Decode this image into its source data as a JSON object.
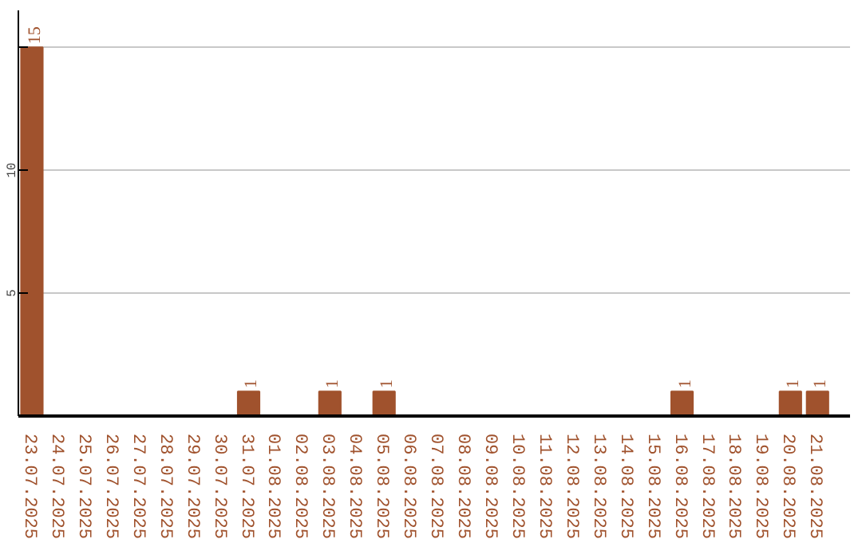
{
  "chart_data": {
    "type": "bar",
    "categories": [
      "23.07.2025",
      "24.07.2025",
      "25.07.2025",
      "26.07.2025",
      "27.07.2025",
      "28.07.2025",
      "29.07.2025",
      "30.07.2025",
      "31.07.2025",
      "01.08.2025",
      "02.08.2025",
      "03.08.2025",
      "04.08.2025",
      "05.08.2025",
      "06.08.2025",
      "07.08.2025",
      "08.08.2025",
      "09.08.2025",
      "10.08.2025",
      "11.08.2025",
      "12.08.2025",
      "13.08.2025",
      "14.08.2025",
      "15.08.2025",
      "16.08.2025",
      "17.08.2025",
      "18.08.2025",
      "19.08.2025",
      "20.08.2025",
      "21.08.2025"
    ],
    "values": [
      15,
      0,
      0,
      0,
      0,
      0,
      0,
      0,
      1,
      0,
      0,
      1,
      0,
      1,
      0,
      0,
      0,
      0,
      0,
      0,
      0,
      0,
      0,
      0,
      1,
      0,
      0,
      0,
      1,
      1
    ],
    "value_labels": [
      "15",
      null,
      null,
      null,
      null,
      null,
      null,
      null,
      "1",
      null,
      null,
      "1",
      null,
      "1",
      null,
      null,
      null,
      null,
      null,
      null,
      null,
      null,
      null,
      null,
      "1",
      null,
      null,
      null,
      "1",
      "1"
    ],
    "color": "#a0522d",
    "ylim": [
      0,
      16.5
    ],
    "yticks": [
      5,
      10,
      {
        "value": 15,
        "label": null
      }
    ],
    "grid": "y"
  }
}
